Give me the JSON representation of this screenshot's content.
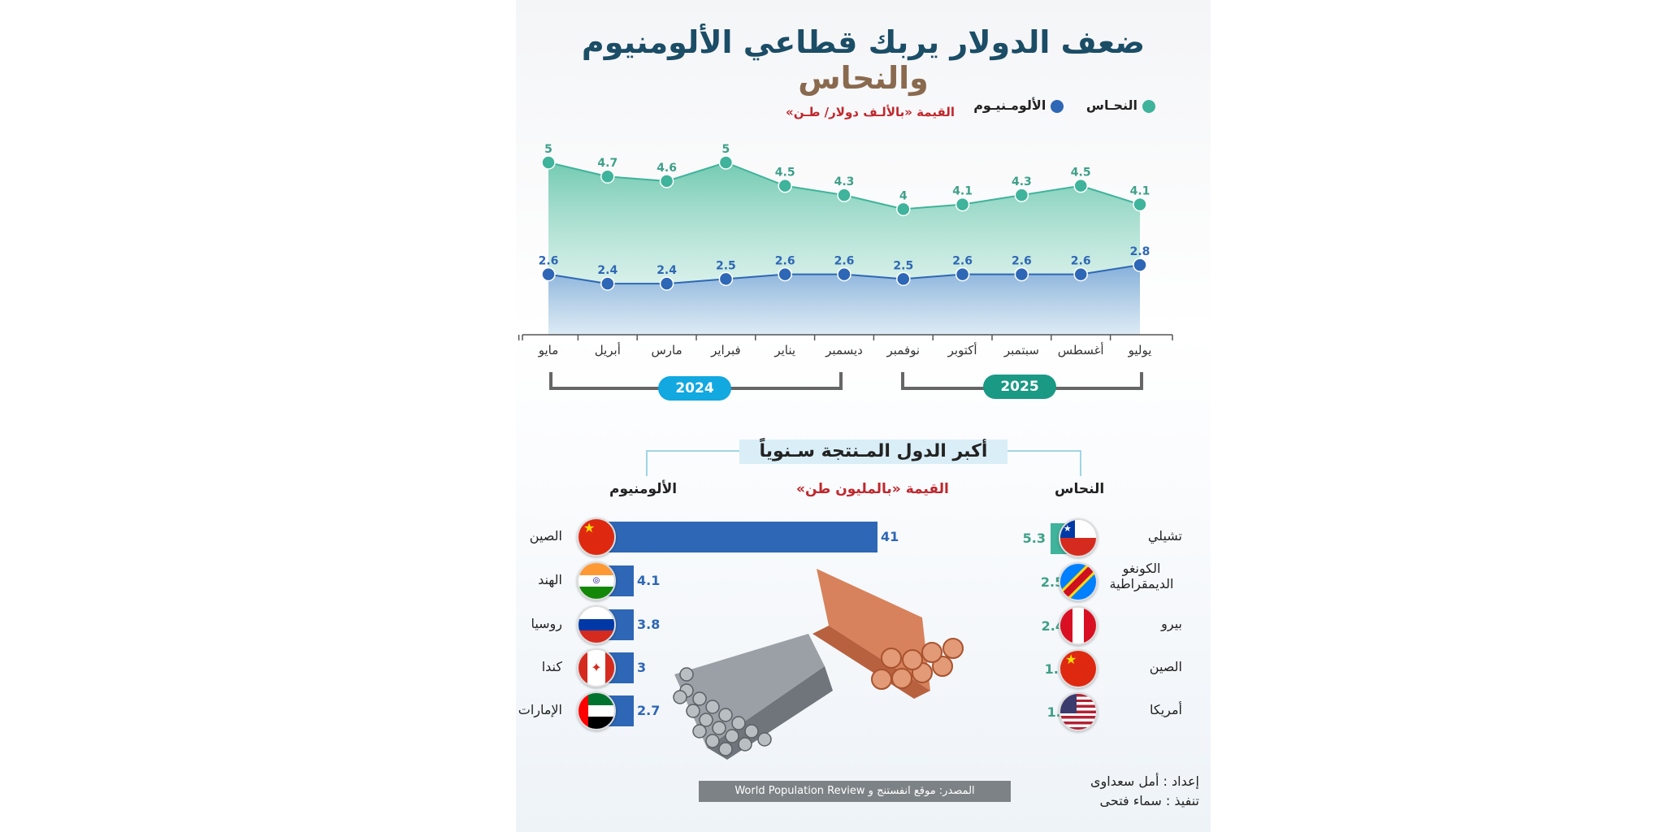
{
  "title": {
    "main": "ضعف الدولار يربك قطاعي الألومنيوم ",
    "accent": "والنحاس"
  },
  "legend": {
    "copper": "النحـاس",
    "aluminum": "الألومـنيـوم"
  },
  "unit_top": "القيمة «بالألـف دولار/ طـن»",
  "years": {
    "y2024": "2024",
    "y2025": "2025"
  },
  "colors": {
    "copper": "#3fb39b",
    "aluminum": "#2e67b5",
    "y2024": "#12a8e0",
    "y2025": "#1a9985",
    "unit_red": "#c0272d"
  },
  "chart_data": {
    "type": "area",
    "categories": [
      "يوليو",
      "أغسطس",
      "سبتمبر",
      "أكتوبر",
      "نوفمبر",
      "ديسمبر",
      "يناير",
      "فبراير",
      "مارس",
      "أبريل",
      "مايو"
    ],
    "series": [
      {
        "name": "النحـاس",
        "values": [
          4.1,
          4.5,
          4.3,
          4.1,
          4,
          4.3,
          4.5,
          5,
          4.6,
          4.7,
          5
        ]
      },
      {
        "name": "الألومـنيـوم",
        "values": [
          2.8,
          2.6,
          2.6,
          2.6,
          2.5,
          2.6,
          2.6,
          2.5,
          2.4,
          2.4,
          2.6
        ]
      }
    ],
    "ylabel": "القيمة «بالألـف دولار/ طـن»",
    "ylim": [
      0,
      5.3
    ]
  },
  "producers": {
    "title": "أكبر الدول المـنتجة سـنوياً",
    "unit": "القيمة «بالمليون طن»",
    "copper_label": "النحاس",
    "aluminum_label": "الألومنيوم",
    "aluminum": [
      {
        "country": "الصين",
        "value": 41,
        "flag": "china"
      },
      {
        "country": "الهند",
        "value": 4.1,
        "flag": "india"
      },
      {
        "country": "روسيا",
        "value": 3.8,
        "flag": "russia"
      },
      {
        "country": "كندا",
        "value": 3,
        "flag": "canada"
      },
      {
        "country": "الإمارات",
        "value": 2.7,
        "flag": "uae"
      }
    ],
    "copper": [
      {
        "country": "تشيلي",
        "value": 5.3,
        "flag": "chile"
      },
      {
        "country": "الكونغو الديمقراطية",
        "value": 2.5,
        "flag": "drc"
      },
      {
        "country": "بيرو",
        "value": 2.4,
        "flag": "peru"
      },
      {
        "country": "الصين",
        "value": 1.9,
        "flag": "china"
      },
      {
        "country": "أمريكا",
        "value": 1.3,
        "flag": "usa"
      }
    ]
  },
  "source": "المصدر: موقع انفستنج و World Population Review",
  "credits": {
    "prepared": "إعداد : أمل سعداوى",
    "design": "تنفيذ : سماء فتحى"
  }
}
